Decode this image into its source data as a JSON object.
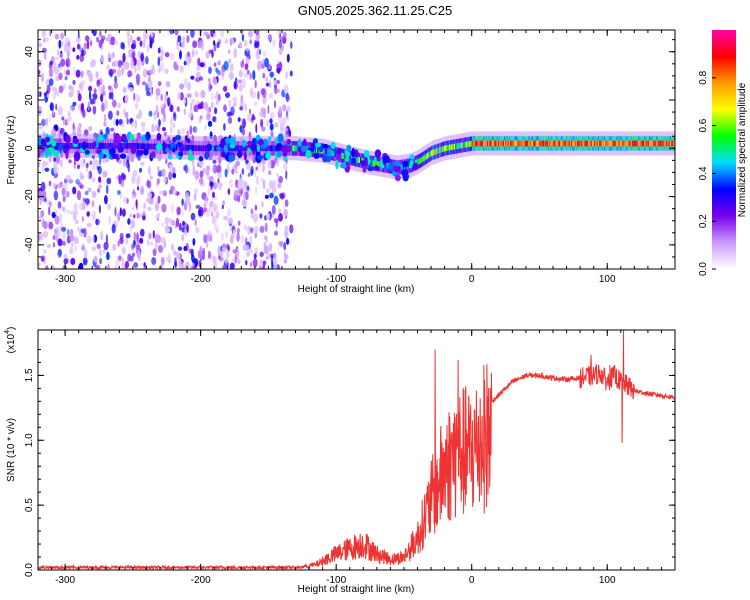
{
  "title": "GN05.2025.362.11.25.C25",
  "chart_data": [
    {
      "type": "heatmap",
      "panel": "spectrogram",
      "xlabel": "Height of straight line (km)",
      "ylabel": "Frequency (Hz)",
      "xlim": [
        -320,
        150
      ],
      "ylim": [
        -50,
        49
      ],
      "xticks": [
        -300,
        -200,
        -100,
        0,
        100
      ],
      "yticks": [
        -40,
        -20,
        0,
        20,
        40
      ],
      "noise_region_x": [
        -320,
        -133
      ],
      "signal_ridge": {
        "x": [
          -320,
          -250,
          -200,
          -130,
          -110,
          -90,
          -75,
          -65,
          -55,
          -45,
          -38,
          -30,
          -20,
          -10,
          0,
          20,
          50,
          80,
          100,
          120,
          150
        ],
        "freq": [
          1,
          1,
          0,
          0,
          -1,
          -4,
          -6,
          -7,
          -8,
          -7,
          -5,
          -2,
          0,
          1,
          2,
          2,
          2,
          2,
          2,
          2,
          2
        ]
      },
      "colorbar": {
        "label": "Normalized spectral amplitude",
        "ticks": [
          "0.0",
          "0.2",
          "0.4",
          "0.6",
          "0.8"
        ],
        "range": [
          0,
          1
        ],
        "colors": [
          "#ffffff",
          "#cc99ff",
          "#7700ee",
          "#0000ff",
          "#00ddff",
          "#00ff00",
          "#ffff00",
          "#ff9900",
          "#ff0000",
          "#ff00aa"
        ]
      }
    },
    {
      "type": "line",
      "panel": "snr",
      "xlabel": "Height of straight line (km)",
      "ylabel": "SNR (10 * v/v)",
      "multiplier": "(x10",
      "multiplier_exp": "4",
      "multiplier_close": ")",
      "xlim": [
        -320,
        150
      ],
      "ylim": [
        0,
        1.85
      ],
      "xticks": [
        -300,
        -200,
        -100,
        0,
        100
      ],
      "yticks": [
        "0.0",
        "0.5",
        "1.0",
        "1.5"
      ],
      "ytick_values": [
        0,
        0.5,
        1.0,
        1.5
      ],
      "color": "#ee3333",
      "envelope": {
        "x": [
          -320,
          -130,
          -115,
          -100,
          -80,
          -70,
          -60,
          -50,
          -40,
          -30,
          -20,
          -10,
          0,
          10,
          20,
          30,
          40,
          50,
          60,
          70,
          80,
          90,
          95,
          100,
          105,
          110,
          115,
          120,
          130,
          150
        ],
        "y": [
          0.02,
          0.02,
          0.05,
          0.15,
          0.25,
          0.15,
          0.1,
          0.12,
          0.3,
          0.65,
          0.95,
          1.1,
          1.1,
          1.25,
          1.35,
          1.45,
          1.5,
          1.5,
          1.48,
          1.47,
          1.48,
          1.5,
          1.52,
          1.45,
          1.5,
          1.45,
          1.42,
          1.38,
          1.36,
          1.33
        ]
      },
      "spikes": [
        {
          "x": -27,
          "y": 1.7
        },
        {
          "x": -10,
          "y": 1.62
        },
        {
          "x": 88,
          "y": 1.66
        },
        {
          "x": 102,
          "y": 1.58
        },
        {
          "x": 112,
          "y": 1.85
        },
        {
          "x": 111,
          "y": 0.98
        }
      ]
    }
  ]
}
